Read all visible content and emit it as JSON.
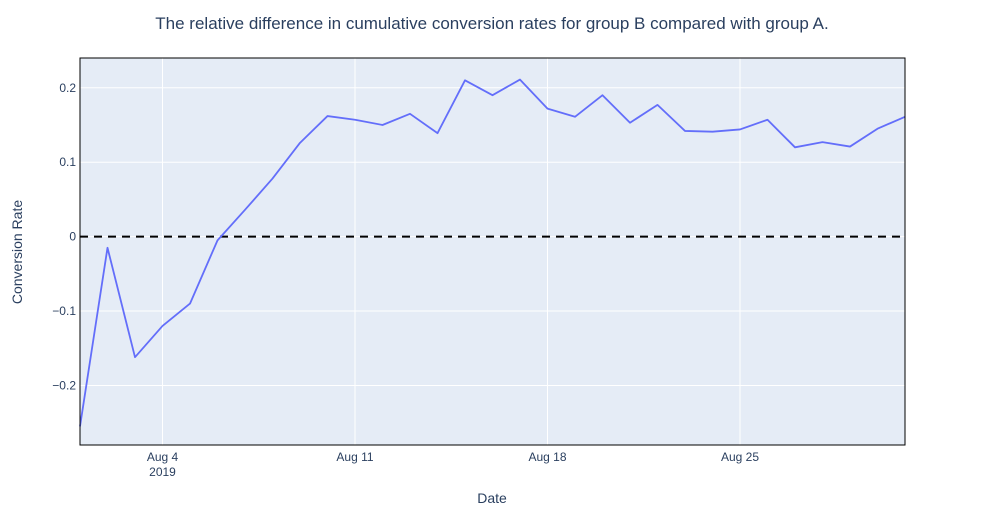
{
  "chart_data": {
    "type": "line",
    "title": "The relative difference in cumulative conversion rates for group B compared with group A.",
    "xlabel": "Date",
    "ylabel": "Conversion Rate",
    "xlim": [
      "2019-08-01",
      "2019-08-31"
    ],
    "ylim": [
      -0.28,
      0.24
    ],
    "x_ticks": [
      {
        "date": "2019-08-04",
        "label": "Aug 4",
        "sublabel": "2019"
      },
      {
        "date": "2019-08-11",
        "label": "Aug 11",
        "sublabel": ""
      },
      {
        "date": "2019-08-18",
        "label": "Aug 18",
        "sublabel": ""
      },
      {
        "date": "2019-08-25",
        "label": "Aug 25",
        "sublabel": ""
      }
    ],
    "y_ticks": [
      {
        "value": -0.2,
        "label": "−0.2"
      },
      {
        "value": -0.1,
        "label": "−0.1"
      },
      {
        "value": 0,
        "label": "0"
      },
      {
        "value": 0.1,
        "label": "0.1"
      },
      {
        "value": 0.2,
        "label": "0.2"
      }
    ],
    "grid": true,
    "reference_line": {
      "y": 0,
      "style": "dashed",
      "color": "#000000"
    },
    "colors": {
      "line": "#636efa",
      "plot_bg": "#e5ecf6",
      "grid": "#ffffff",
      "text": "#2a3f5f"
    },
    "x": [
      "2019-08-01",
      "2019-08-02",
      "2019-08-03",
      "2019-08-04",
      "2019-08-05",
      "2019-08-06",
      "2019-08-07",
      "2019-08-08",
      "2019-08-09",
      "2019-08-10",
      "2019-08-11",
      "2019-08-12",
      "2019-08-13",
      "2019-08-14",
      "2019-08-15",
      "2019-08-16",
      "2019-08-17",
      "2019-08-18",
      "2019-08-19",
      "2019-08-20",
      "2019-08-21",
      "2019-08-22",
      "2019-08-23",
      "2019-08-24",
      "2019-08-25",
      "2019-08-26",
      "2019-08-27",
      "2019-08-28",
      "2019-08-29",
      "2019-08-30",
      "2019-08-31"
    ],
    "y": [
      -0.255,
      -0.015,
      -0.162,
      -0.12,
      -0.09,
      -0.005,
      0.036,
      0.078,
      0.126,
      0.162,
      0.157,
      0.15,
      0.165,
      0.139,
      0.21,
      0.19,
      0.211,
      0.172,
      0.161,
      0.19,
      0.153,
      0.177,
      0.142,
      0.141,
      0.144,
      0.157,
      0.12,
      0.127,
      0.121,
      0.145,
      0.161
    ]
  }
}
